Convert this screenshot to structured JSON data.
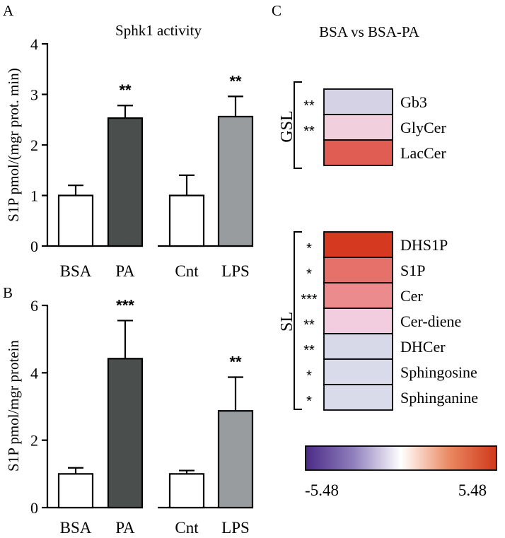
{
  "panels": {
    "a": "A",
    "b": "B",
    "c": "C"
  },
  "chart_data": [
    {
      "type": "bar",
      "panel": "A",
      "title": "Sphk1 activity",
      "ylabel": "S1P pmol/(mgr prot. min)",
      "ylim": [
        0,
        4
      ],
      "yticks": [
        0,
        1,
        2,
        3,
        4
      ],
      "groups": [
        {
          "categories": [
            "BSA",
            "PA"
          ],
          "values": [
            1.0,
            2.53
          ],
          "errors": [
            0.2,
            0.25
          ],
          "significance": [
            "",
            "**"
          ],
          "colors": [
            "#ffffff",
            "#4a4f4e"
          ]
        },
        {
          "categories": [
            "Cnt",
            "LPS"
          ],
          "values": [
            1.0,
            2.56
          ],
          "errors": [
            0.4,
            0.4
          ],
          "significance": [
            "",
            "**"
          ],
          "colors": [
            "#ffffff",
            "#989c9f"
          ]
        }
      ]
    },
    {
      "type": "bar",
      "panel": "B",
      "title": "",
      "ylabel": "S1P pmol/mgr protein",
      "ylim": [
        0,
        6
      ],
      "yticks": [
        0,
        2,
        4,
        6
      ],
      "groups": [
        {
          "categories": [
            "BSA",
            "PA"
          ],
          "values": [
            1.0,
            4.42
          ],
          "errors": [
            0.18,
            1.13
          ],
          "significance": [
            "",
            "***"
          ],
          "colors": [
            "#ffffff",
            "#4a4f4e"
          ]
        },
        {
          "categories": [
            "Cnt",
            "LPS"
          ],
          "values": [
            1.0,
            2.87
          ],
          "errors": [
            0.1,
            1.0
          ],
          "significance": [
            "",
            "**"
          ],
          "colors": [
            "#ffffff",
            "#989c9f"
          ]
        }
      ]
    },
    {
      "type": "heatmap",
      "panel": "C",
      "title": "BSA vs BSA-PA",
      "scale": {
        "min": -5.48,
        "max": 5.48,
        "min_label": "-5.48",
        "max_label": "5.48"
      },
      "colormap": [
        "#4b2a86",
        "#8f7fbd",
        "#ffffff",
        "#e98a63",
        "#d0381b"
      ],
      "groups": [
        {
          "name": "GSL",
          "rows": [
            {
              "label": "Gb3",
              "significance": "**",
              "color": "#d5d2e6"
            },
            {
              "label": "GlyCer",
              "significance": "**",
              "color": "#f1cfdc"
            },
            {
              "label": "LacCer",
              "significance": "",
              "color": "#e05d53"
            }
          ]
        },
        {
          "name": "SL",
          "rows": [
            {
              "label": "DHS1P",
              "significance": "*",
              "color": "#d5391f"
            },
            {
              "label": "S1P",
              "significance": "*",
              "color": "#e6706a"
            },
            {
              "label": "Cer",
              "significance": "***",
              "color": "#ec8b8d"
            },
            {
              "label": "Cer-diene",
              "significance": "**",
              "color": "#f2cde0"
            },
            {
              "label": "DHCer",
              "significance": "**",
              "color": "#d8d9e8"
            },
            {
              "label": "Sphingosine",
              "significance": "*",
              "color": "#dadbea"
            },
            {
              "label": "Sphinganine",
              "significance": "*",
              "color": "#d9dbea"
            }
          ]
        }
      ]
    }
  ]
}
